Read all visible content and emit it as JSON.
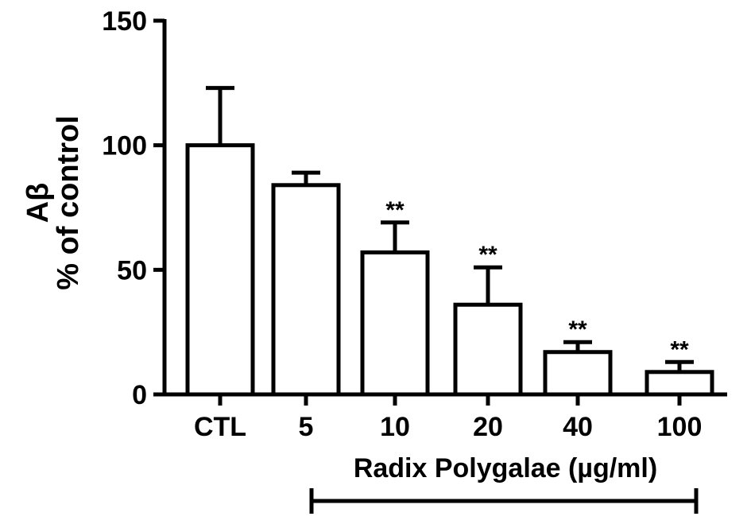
{
  "chart_data": {
    "type": "bar",
    "categories": [
      "CTL",
      "5",
      "10",
      "20",
      "40",
      "100"
    ],
    "values": [
      100,
      84,
      57,
      36,
      17,
      9
    ],
    "errors": [
      23,
      5,
      12,
      15,
      4,
      4
    ],
    "significance": [
      "",
      "",
      "**",
      "**",
      "**",
      "**"
    ],
    "ylabel_line1": "Aβ",
    "ylabel_line2": "% of control",
    "xlabel": "Radix Polygalae (µg/ml)",
    "ylim": [
      0,
      150
    ],
    "yticks": [
      0,
      50,
      100,
      150
    ],
    "bar_fill": "#ffffff",
    "bar_stroke": "#000000",
    "grid": false,
    "legend": "none"
  }
}
